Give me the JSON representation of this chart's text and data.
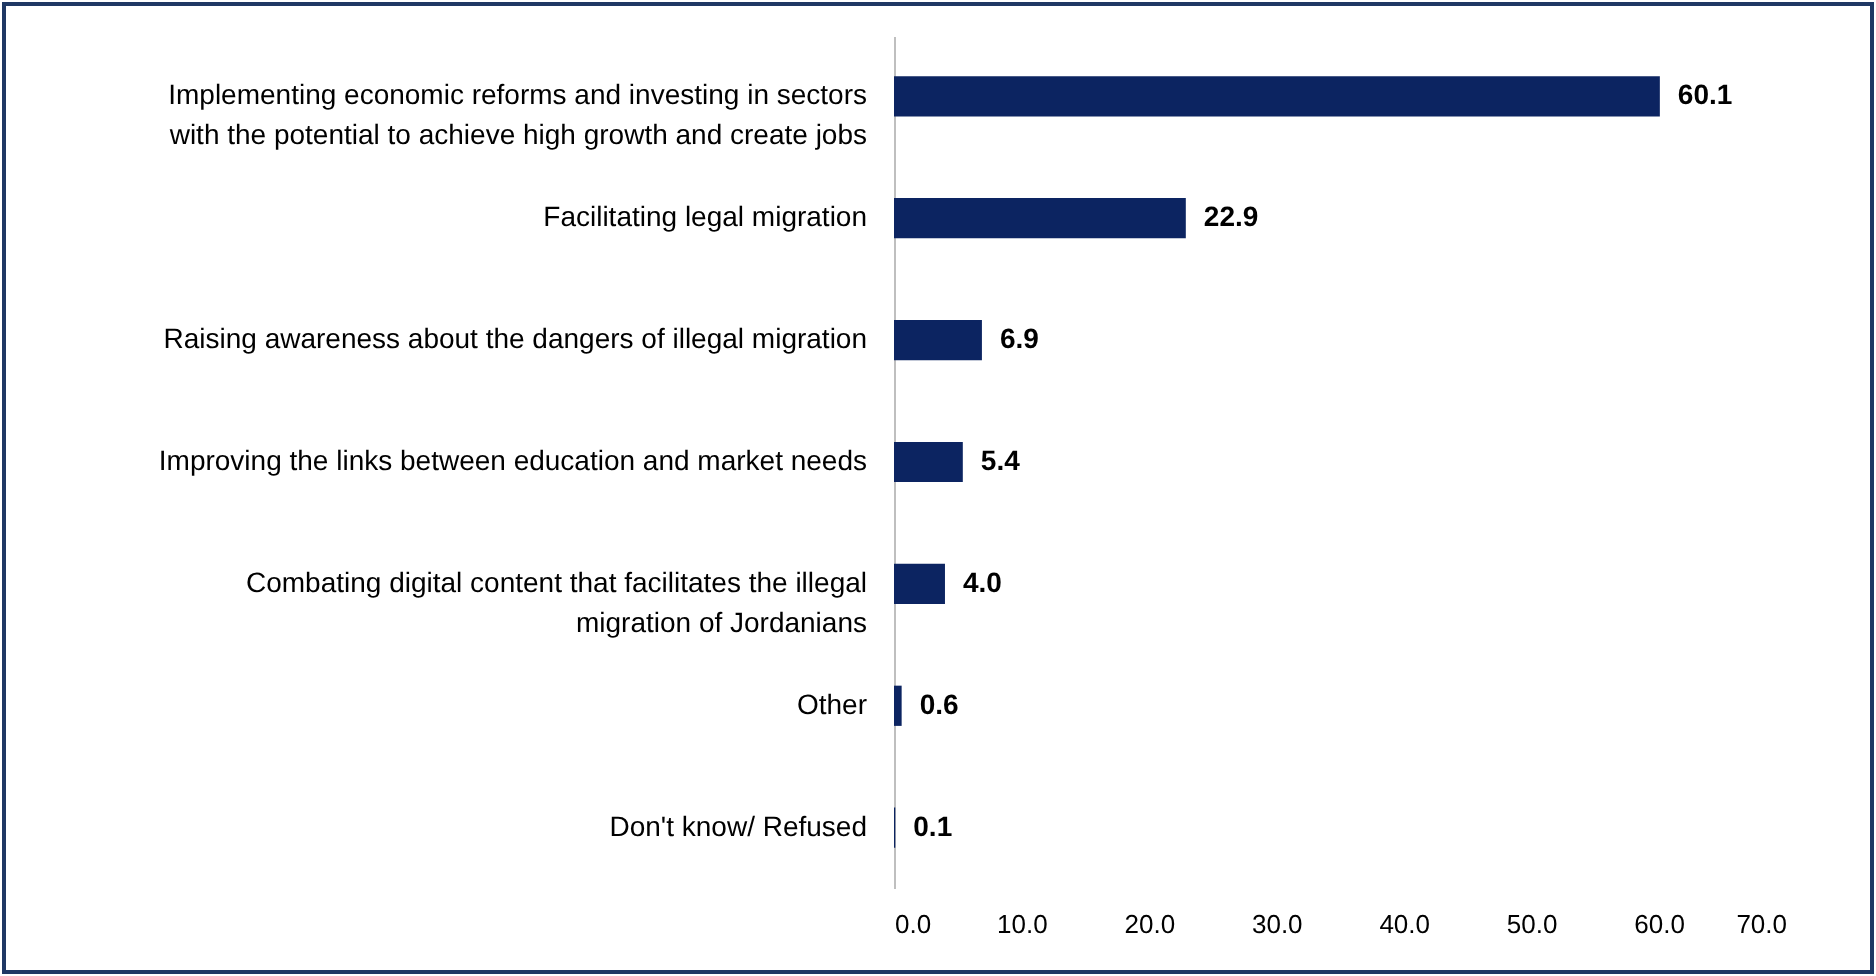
{
  "chart_data": {
    "type": "bar",
    "orientation": "horizontal",
    "categories": [
      "Implementing economic reforms and investing in sectors with the potential to achieve high growth and create jobs",
      "Facilitating legal migration",
      "Raising awareness about the dangers of illegal migration",
      "Improving the links between education and market needs",
      "Combating digital content that facilitates the illegal migration of Jordanians",
      "Other",
      "Don't know/ Refused"
    ],
    "values": [
      60.1,
      22.9,
      6.9,
      5.4,
      4.0,
      0.6,
      0.1
    ],
    "value_labels": [
      "60.1",
      "22.9",
      "6.9",
      "5.4",
      "4.0",
      "0.6",
      "0.1"
    ],
    "color": "#0c2461",
    "xlim": [
      0,
      70
    ],
    "xticks": [
      {
        "value": 0,
        "label": "0.0"
      },
      {
        "value": 10,
        "label": "10.0"
      },
      {
        "value": 20,
        "label": "20.0"
      },
      {
        "value": 30,
        "label": "30.0"
      },
      {
        "value": 40,
        "label": "40.0"
      },
      {
        "value": 50,
        "label": "50.0"
      },
      {
        "value": 60,
        "label": "60.0"
      },
      {
        "value": 70,
        "label": "70.0"
      }
    ],
    "grid": false
  }
}
